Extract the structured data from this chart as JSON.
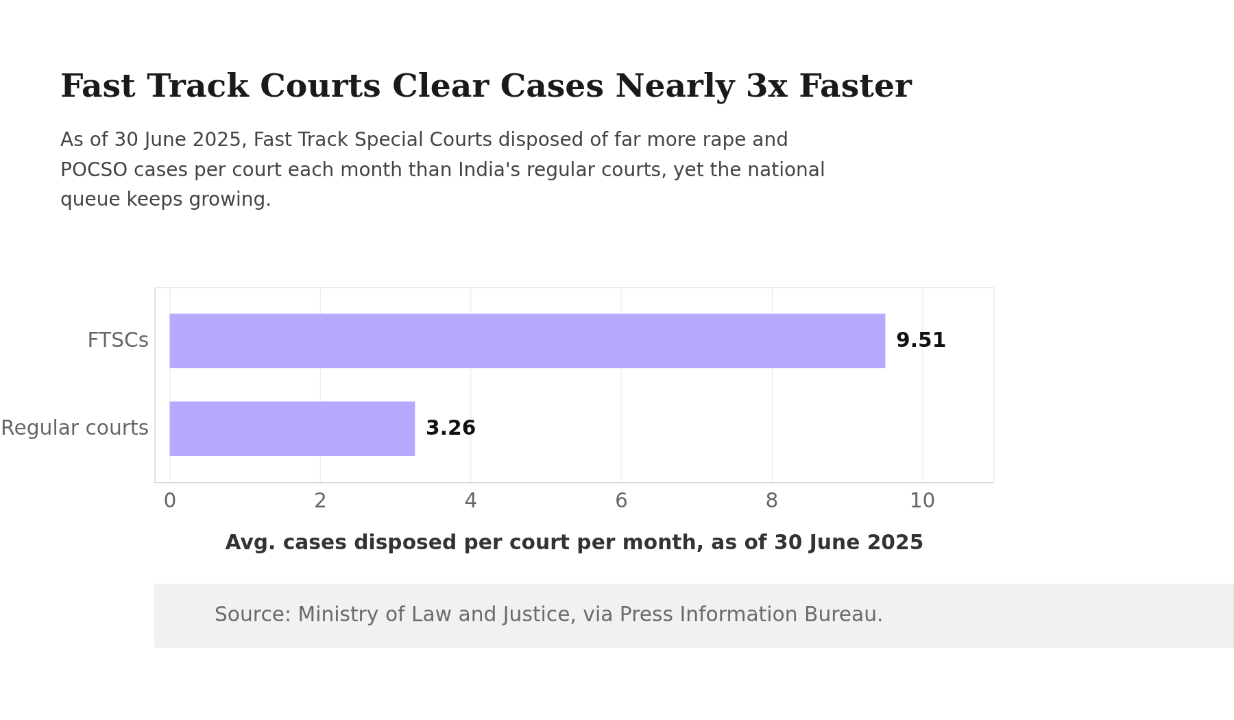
{
  "chart_data": {
    "type": "bar",
    "orientation": "horizontal",
    "title": "Fast Track Courts Clear Cases Nearly 3x Faster",
    "subtitle": "As of 30 June 2025, Fast Track Special Courts disposed of far more rape and POCSO cases per court each month than India's regular courts, yet the national queue keeps growing.",
    "categories": [
      "FTSCs",
      "Regular courts"
    ],
    "values": [
      9.51,
      3.26
    ],
    "color": "#b8a8fe",
    "xlabel": "Avg. cases disposed per court per month, as of 30 June 2025",
    "xlim": [
      -0.2,
      10.95
    ],
    "xticks": [
      0,
      2,
      4,
      6,
      8,
      10
    ],
    "grid": "x",
    "legend": false,
    "data_labels": true,
    "annotations": [
      "Source: Ministry of Law and Justice, via Press Information Bureau."
    ]
  }
}
